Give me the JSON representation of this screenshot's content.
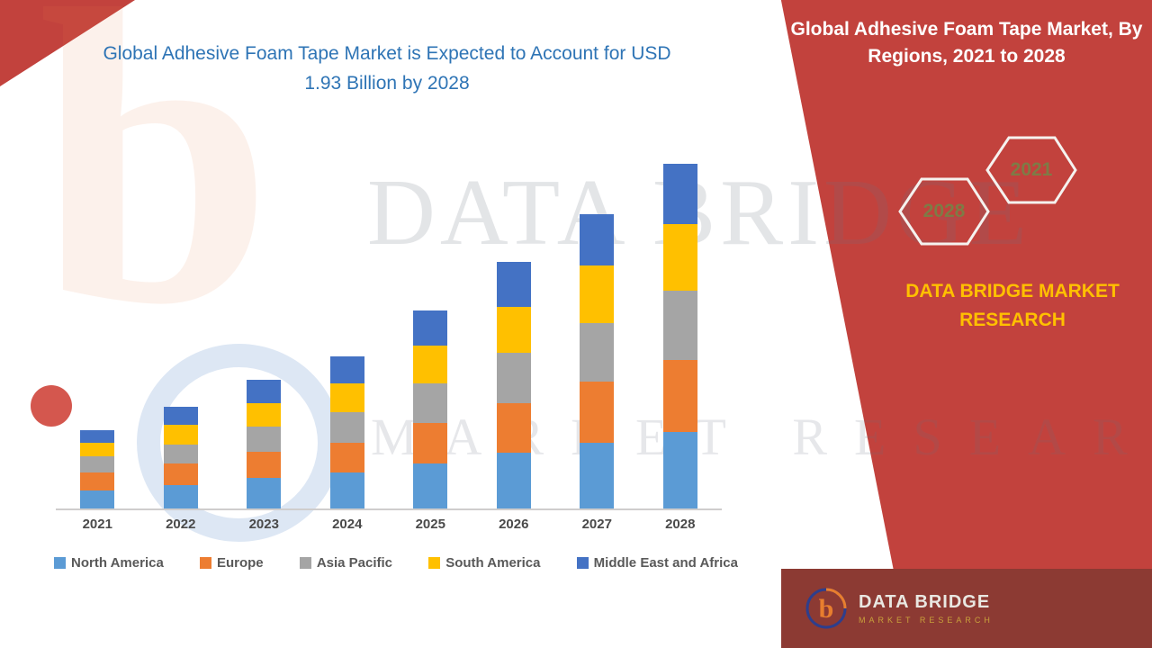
{
  "colors": {
    "accent_red": "#c2423d",
    "footer_red": "#8c3a33",
    "title_blue": "#2e74b5",
    "brand_gold": "#ffc000",
    "hex_year_text": "#7e7b46",
    "axis_label_gray": "#595959"
  },
  "left_panel": {
    "title": "Global Adhesive Foam Tape Market is Expected to Account for USD 1.93 Billion by 2028"
  },
  "chart_data": {
    "type": "bar",
    "stacked": true,
    "title": "Global Adhesive Foam Tape Market is Expected to Account for USD 1.93 Billion by 2028",
    "xlabel": "",
    "ylabel": "",
    "values_unit": "USD Billion",
    "ylim": [
      0,
      2.0
    ],
    "grid": false,
    "y_axis_visible": false,
    "legend_position": "bottom",
    "categories": [
      "2021",
      "2022",
      "2023",
      "2024",
      "2025",
      "2026",
      "2027",
      "2028"
    ],
    "totals": [
      0.44,
      0.57,
      0.72,
      0.85,
      1.11,
      1.38,
      1.65,
      1.93
    ],
    "series": [
      {
        "name": "North America",
        "color": "#5b9bd5",
        "values": [
          0.1,
          0.13,
          0.17,
          0.2,
          0.25,
          0.31,
          0.37,
          0.43
        ]
      },
      {
        "name": "Europe",
        "color": "#ed7d31",
        "values": [
          0.1,
          0.12,
          0.15,
          0.17,
          0.23,
          0.28,
          0.34,
          0.4
        ]
      },
      {
        "name": "Asia Pacific",
        "color": "#a5a5a5",
        "values": [
          0.09,
          0.11,
          0.14,
          0.17,
          0.22,
          0.28,
          0.33,
          0.39
        ]
      },
      {
        "name": "South America",
        "color": "#ffc000",
        "values": [
          0.08,
          0.11,
          0.13,
          0.16,
          0.21,
          0.26,
          0.32,
          0.37
        ]
      },
      {
        "name": "Middle East and Africa",
        "color": "#4472c4",
        "values": [
          0.07,
          0.1,
          0.13,
          0.15,
          0.2,
          0.25,
          0.29,
          0.34
        ]
      }
    ]
  },
  "right_panel": {
    "title": "Global Adhesive Foam Tape Market, By Regions, 2021 to 2028",
    "hexagons": [
      {
        "label": "2028"
      },
      {
        "label": "2021"
      }
    ],
    "brand": "DATA BRIDGE MARKET RESEARCH"
  },
  "footer": {
    "brand": "DATA BRIDGE",
    "sub": "MARKET RESEARCH"
  },
  "watermark": {
    "letter": "b",
    "line1": "DATA BRIDGE",
    "line2": "MARKET RESEARCH"
  }
}
